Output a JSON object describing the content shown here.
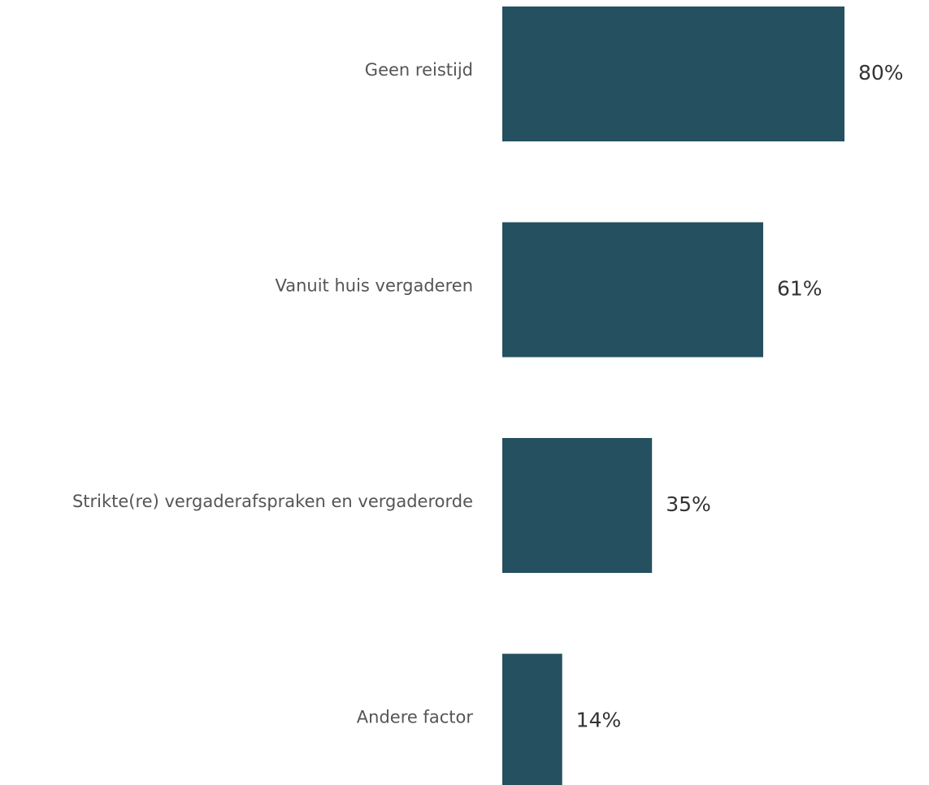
{
  "chart_data": {
    "type": "hbar",
    "categories": [
      "Geen reistijd",
      "Vanuit huis vergaderen",
      "Strikte(re) vergaderafspraken en vergaderorde",
      "Andere factor"
    ],
    "values": [
      80,
      61,
      35,
      14
    ],
    "value_labels": [
      "80%",
      "61%",
      "35%",
      "14%"
    ],
    "color": "#24505f"
  }
}
